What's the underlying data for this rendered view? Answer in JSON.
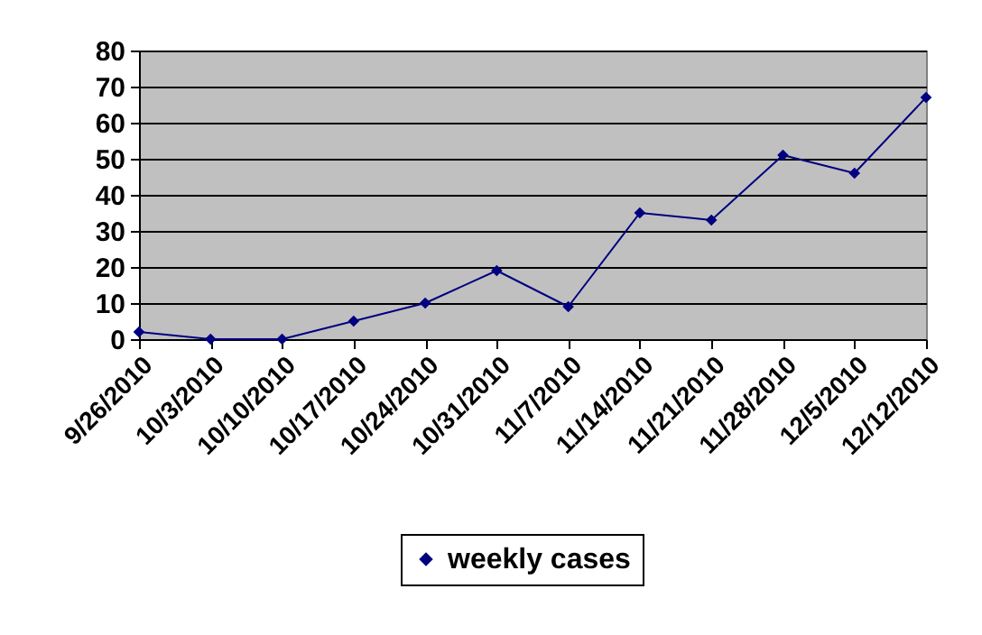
{
  "chart_data": {
    "type": "line",
    "categories": [
      "9/26/2010",
      "10/3/2010",
      "10/10/2010",
      "10/17/2010",
      "10/24/2010",
      "10/31/2010",
      "11/7/2010",
      "11/14/2010",
      "11/21/2010",
      "11/28/2010",
      "12/5/2010",
      "12/12/2010"
    ],
    "series": [
      {
        "name": "weekly cases",
        "color": "#000080",
        "values": [
          2,
          0,
          0,
          5,
          10,
          19,
          9,
          35,
          33,
          51,
          46,
          67
        ]
      }
    ],
    "ylim": [
      0,
      80
    ],
    "yticks": [
      0,
      10,
      20,
      30,
      40,
      50,
      60,
      70,
      80
    ],
    "grid": "y",
    "legend": "bottom",
    "marker": "diamond",
    "line_style": "solid"
  }
}
